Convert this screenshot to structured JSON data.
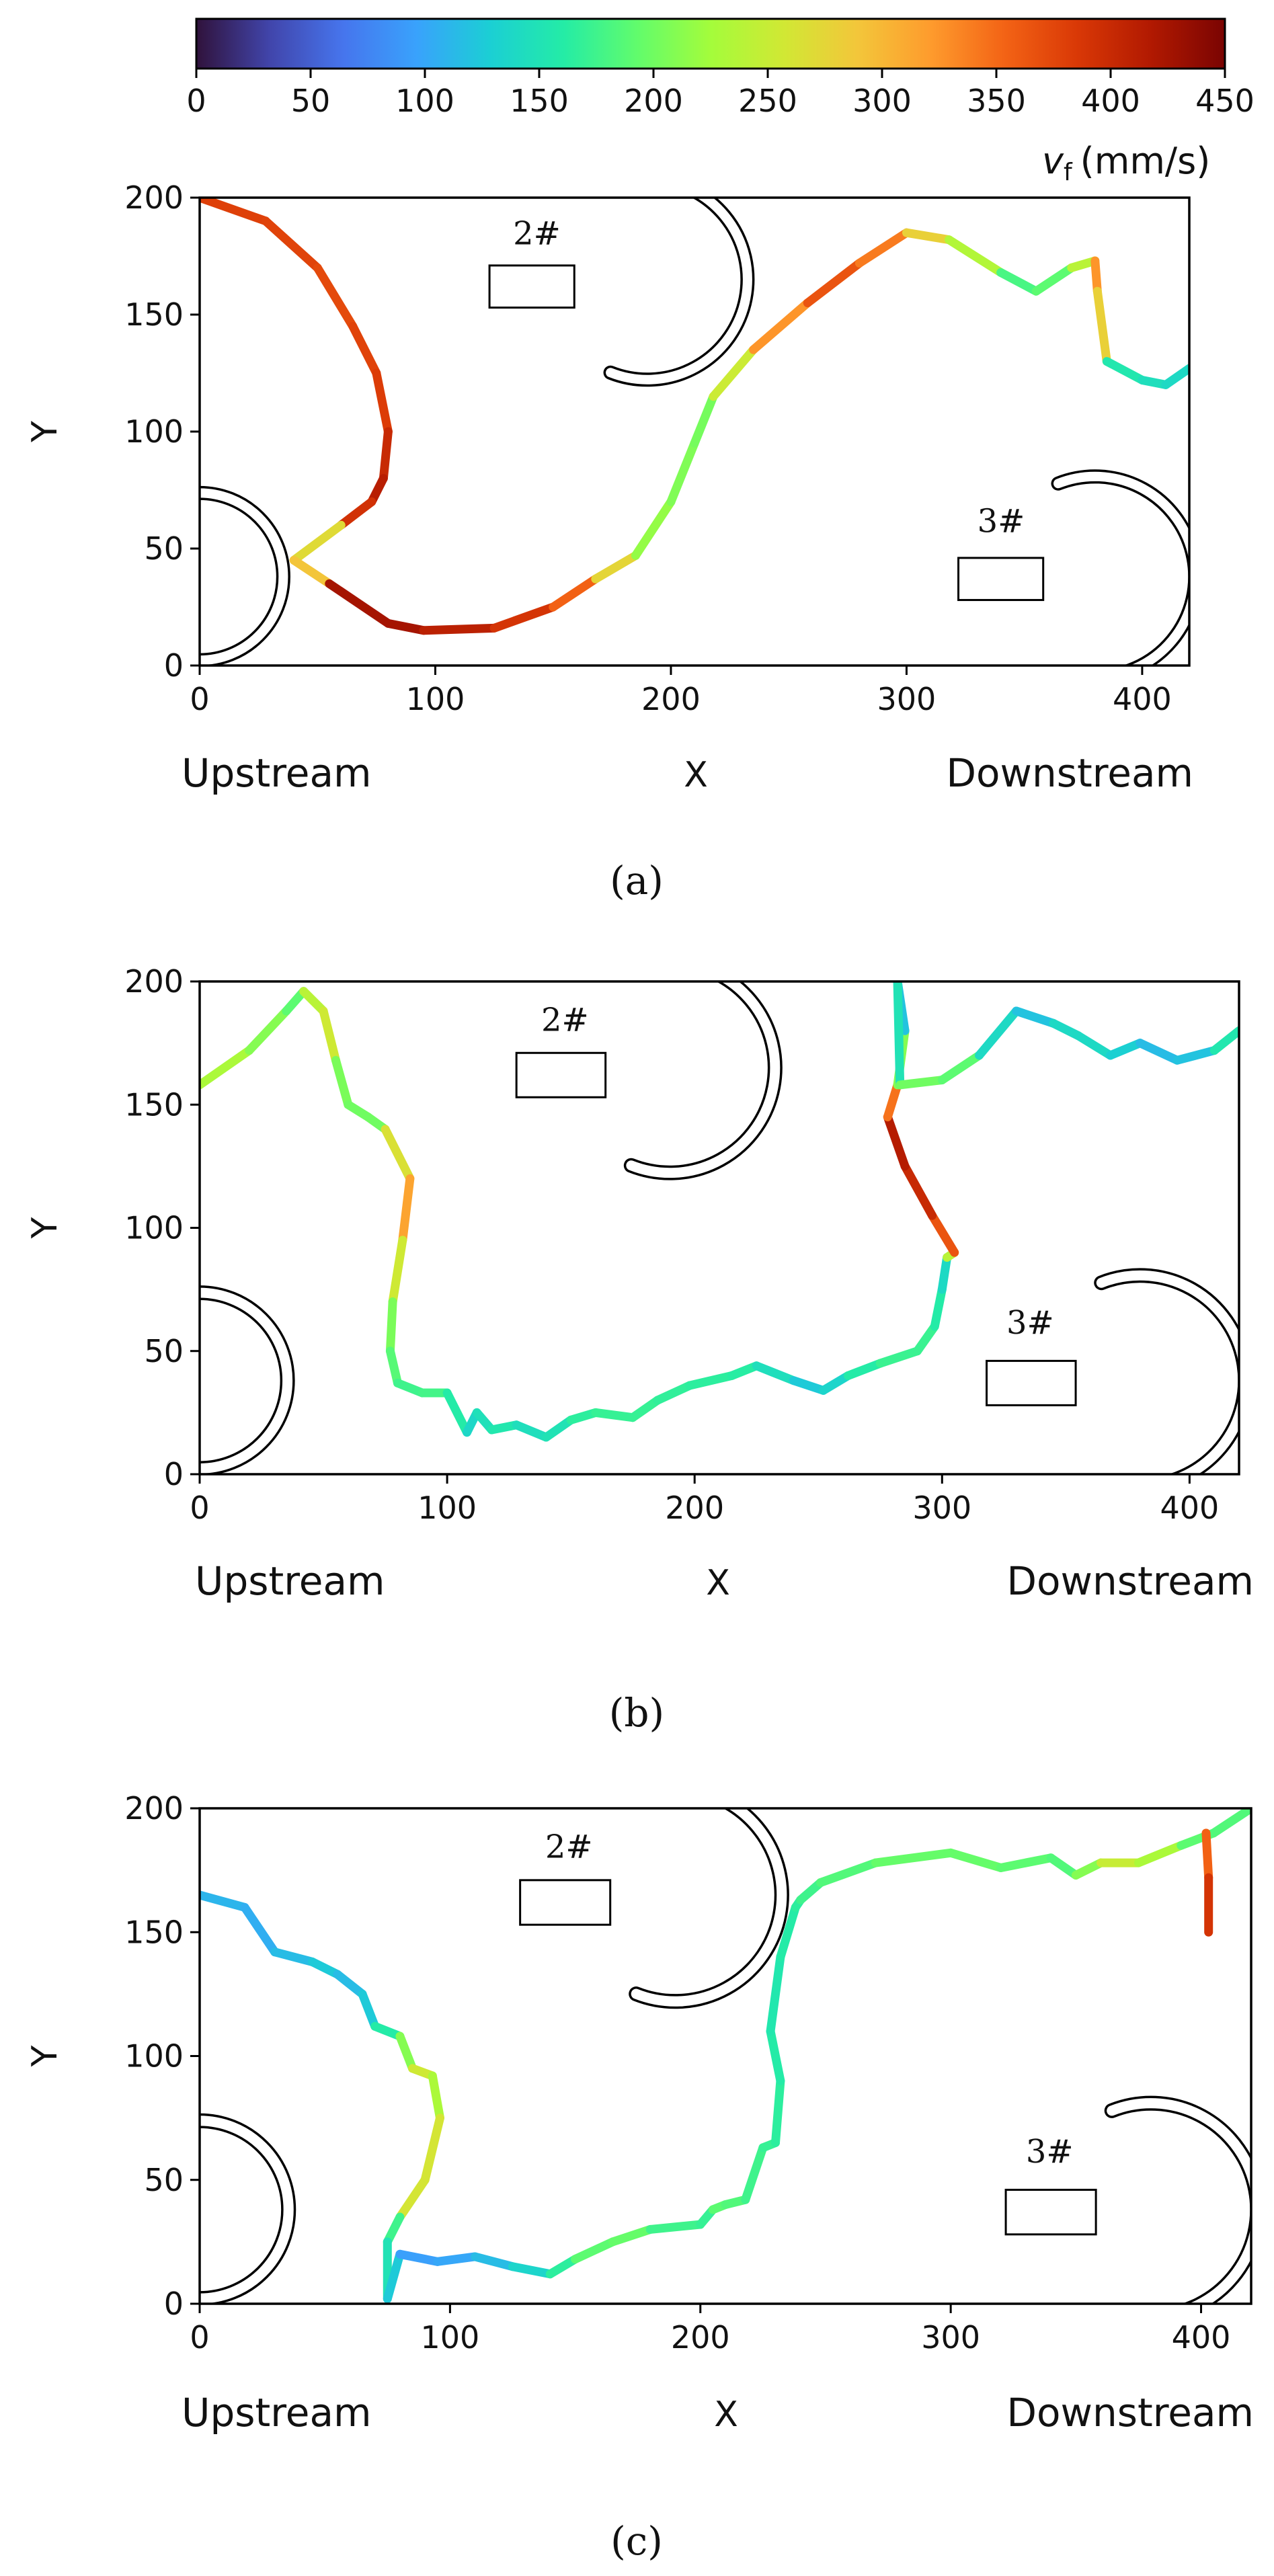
{
  "colorbar": {
    "min": 0,
    "max": 450,
    "ticks": [
      "0",
      "50",
      "100",
      "150",
      "200",
      "250",
      "300",
      "350",
      "400",
      "450"
    ],
    "tick_values": [
      0,
      50,
      100,
      150,
      200,
      250,
      300,
      350,
      400,
      450
    ],
    "label_symbol": "v",
    "label_subscript": "f",
    "label_unit": "(mm/s)",
    "colormap": [
      "#30123b",
      "#4145ab",
      "#4675ed",
      "#39a2fc",
      "#1bcfd4",
      "#24eca6",
      "#61fc6c",
      "#a4fc3b",
      "#d1e834",
      "#f3c63a",
      "#fe9b2d",
      "#f36315",
      "#d93806",
      "#b11901",
      "#7a0402"
    ]
  },
  "panels_text": {
    "upstream": "Upstream",
    "downstream": "Downstream",
    "xlabel": "X",
    "ylabel": "Y",
    "xticks": [
      "0",
      "100",
      "200",
      "300",
      "400"
    ],
    "yticks": [
      "0",
      "50",
      "100",
      "150",
      "200"
    ],
    "marker_2": "2#",
    "marker_3": "3#"
  },
  "captions": {
    "a": "(a)",
    "b": "(b)",
    "c": "(c)"
  },
  "chart_data": [
    {
      "type": "line",
      "panel": "a",
      "xlim": [
        0,
        420
      ],
      "ylim": [
        0,
        200
      ],
      "xticks": [
        0,
        100,
        200,
        300,
        400
      ],
      "yticks": [
        0,
        50,
        100,
        150,
        200
      ],
      "xlabel": "X",
      "ylabel": "Y",
      "color_scale": "v_f (mm/s)",
      "series": [
        {
          "x": [
            0,
            28,
            50,
            65,
            75,
            80,
            78,
            73,
            60,
            40,
            55,
            80,
            95,
            125,
            150,
            168,
            185,
            200,
            210,
            218,
            235,
            258,
            280,
            300,
            318,
            340,
            355,
            370,
            380,
            381,
            385,
            400,
            410,
            420
          ],
          "y": [
            200,
            190,
            170,
            145,
            125,
            100,
            80,
            70,
            60,
            45,
            35,
            18,
            15,
            16,
            25,
            37,
            47,
            70,
            95,
            115,
            135,
            155,
            172,
            185,
            182,
            168,
            160,
            170,
            173,
            160,
            130,
            122,
            120,
            127
          ],
          "v": [
            380,
            380,
            375,
            370,
            385,
            380,
            420,
            405,
            380,
            160,
            420,
            430,
            420,
            400,
            380,
            330,
            220,
            215,
            200,
            205,
            300,
            350,
            380,
            300,
            260,
            210,
            150,
            230,
            250,
            400,
            160,
            150,
            140,
            140
          ]
        }
      ]
    },
    {
      "type": "line",
      "panel": "b",
      "xlim": [
        0,
        420
      ],
      "ylim": [
        0,
        200
      ],
      "xticks": [
        0,
        100,
        200,
        300,
        400
      ],
      "yticks": [
        0,
        50,
        100,
        150,
        200
      ],
      "xlabel": "X",
      "ylabel": "Y",
      "color_scale": "v_f (mm/s)",
      "series": [
        {
          "x": [
            0,
            20,
            35,
            42,
            50,
            55,
            60,
            68,
            75,
            85,
            82,
            78,
            77,
            80,
            90,
            100,
            108,
            112,
            118,
            128,
            140,
            150,
            160,
            175,
            185,
            198,
            215,
            225,
            240,
            252,
            262,
            275,
            290,
            297,
            300,
            302,
            305,
            296,
            285,
            278,
            282,
            285,
            282,
            283,
            300,
            315,
            330,
            345,
            355,
            368,
            380,
            395,
            410,
            420
          ],
          "y": [
            158,
            172,
            188,
            196,
            188,
            168,
            150,
            145,
            140,
            120,
            95,
            70,
            50,
            37,
            33,
            33,
            17,
            25,
            18,
            20,
            15,
            22,
            25,
            23,
            30,
            36,
            40,
            44,
            38,
            34,
            40,
            45,
            50,
            60,
            75,
            88,
            90,
            105,
            125,
            145,
            158,
            180,
            200,
            158,
            160,
            170,
            188,
            183,
            178,
            170,
            175,
            168,
            172,
            180
          ],
          "v": [
            240,
            220,
            200,
            180,
            300,
            210,
            200,
            200,
            200,
            330,
            300,
            210,
            200,
            175,
            175,
            180,
            140,
            135,
            160,
            150,
            140,
            160,
            170,
            170,
            170,
            165,
            165,
            160,
            130,
            120,
            150,
            170,
            175,
            170,
            150,
            130,
            350,
            380,
            420,
            410,
            280,
            140,
            100,
            200,
            200,
            180,
            100,
            140,
            140,
            140,
            120,
            110,
            130,
            180
          ]
        }
      ]
    },
    {
      "type": "line",
      "panel": "c",
      "xlim": [
        0,
        420
      ],
      "ylim": [
        0,
        200
      ],
      "xticks": [
        0,
        100,
        200,
        300,
        400
      ],
      "yticks": [
        0,
        50,
        100,
        150,
        200
      ],
      "xlabel": "X",
      "ylabel": "Y",
      "color_scale": "v_f (mm/s)",
      "series": [
        {
          "x": [
            0,
            18,
            30,
            45,
            55,
            65,
            70,
            80,
            85,
            93,
            96,
            90,
            80,
            75,
            75,
            80,
            95,
            110,
            125,
            140,
            150,
            165,
            180,
            200,
            205,
            210,
            218,
            225,
            230,
            232,
            228,
            232,
            238,
            240,
            248,
            270,
            300,
            320,
            340,
            350,
            360,
            375,
            392,
            405,
            420
          ],
          "y": [
            165,
            160,
            142,
            138,
            133,
            125,
            112,
            108,
            95,
            92,
            75,
            50,
            35,
            25,
            2,
            20,
            17,
            19,
            15,
            12,
            18,
            25,
            30,
            32,
            38,
            40,
            42,
            63,
            65,
            90,
            110,
            140,
            160,
            163,
            170,
            178,
            182,
            176,
            180,
            173,
            178,
            178,
            185,
            190,
            200
          ],
          "v": [
            120,
            100,
            110,
            120,
            130,
            100,
            150,
            170,
            250,
            260,
            200,
            320,
            200,
            150,
            150,
            100,
            90,
            110,
            120,
            150,
            180,
            200,
            190,
            160,
            180,
            200,
            170,
            180,
            160,
            170,
            150,
            160,
            160,
            170,
            180,
            190,
            200,
            190,
            190,
            180,
            240,
            260,
            200,
            180,
            190
          ]
        },
        {
          "x": [
            402,
            403,
            403
          ],
          "y": [
            190,
            172,
            150
          ],
          "v": [
            330,
            380,
            400
          ]
        }
      ]
    }
  ]
}
